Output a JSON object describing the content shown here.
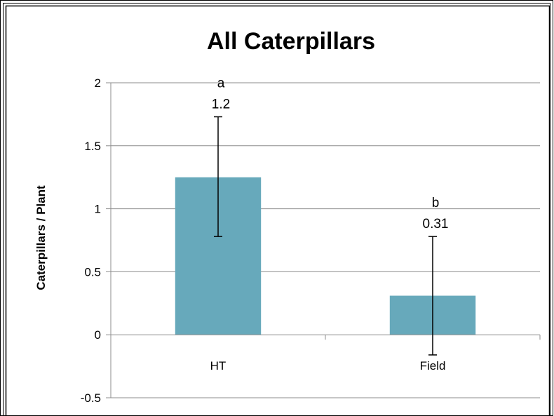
{
  "chart_data": {
    "type": "bar",
    "title": "All Caterpillars",
    "xlabel": "",
    "ylabel": "Caterpillars / Plant",
    "categories": [
      "HT",
      "Field"
    ],
    "values": [
      1.25,
      0.31
    ],
    "error_bars": [
      {
        "lower": 0.78,
        "upper": 1.73
      },
      {
        "lower": -0.16,
        "upper": 0.78
      }
    ],
    "value_labels": [
      "1.2",
      "0.31"
    ],
    "significance_letters": [
      "a",
      "b"
    ],
    "ylim": [
      -0.5,
      2
    ],
    "yticks": [
      "2",
      "1.5",
      "1",
      "0.5",
      "0",
      "-0.5"
    ],
    "ytick_values": [
      2,
      1.5,
      1,
      0.5,
      0,
      -0.5
    ],
    "grid": true,
    "legend": false,
    "bar_color": "#67a9bb",
    "gridline_color": "#8c8c8c"
  }
}
